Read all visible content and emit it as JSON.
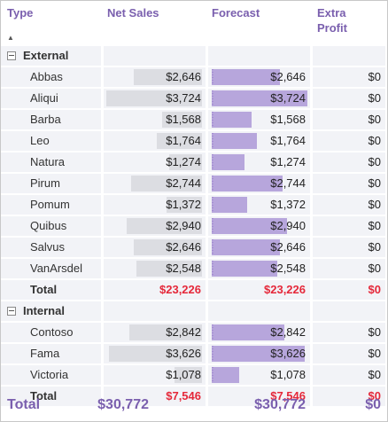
{
  "header": {
    "type": "Type",
    "net_sales": "Net Sales",
    "forecast": "Forecast",
    "extra_profit": "Extra\nProfit",
    "sort_icon": "sort-ascending-icon"
  },
  "groups": [
    {
      "label": "External",
      "rows": [
        {
          "name": "Abbas",
          "net_sales": "$2,646",
          "forecast": "$2,646",
          "extra_profit": "$0",
          "net_sales_value": 2646,
          "forecast_value": 2646
        },
        {
          "name": "Aliqui",
          "net_sales": "$3,724",
          "forecast": "$3,724",
          "extra_profit": "$0",
          "net_sales_value": 3724,
          "forecast_value": 3724
        },
        {
          "name": "Barba",
          "net_sales": "$1,568",
          "forecast": "$1,568",
          "extra_profit": "$0",
          "net_sales_value": 1568,
          "forecast_value": 1568
        },
        {
          "name": "Leo",
          "net_sales": "$1,764",
          "forecast": "$1,764",
          "extra_profit": "$0",
          "net_sales_value": 1764,
          "forecast_value": 1764
        },
        {
          "name": "Natura",
          "net_sales": "$1,274",
          "forecast": "$1,274",
          "extra_profit": "$0",
          "net_sales_value": 1274,
          "forecast_value": 1274
        },
        {
          "name": "Pirum",
          "net_sales": "$2,744",
          "forecast": "$2,744",
          "extra_profit": "$0",
          "net_sales_value": 2744,
          "forecast_value": 2744
        },
        {
          "name": "Pomum",
          "net_sales": "$1,372",
          "forecast": "$1,372",
          "extra_profit": "$0",
          "net_sales_value": 1372,
          "forecast_value": 1372
        },
        {
          "name": "Quibus",
          "net_sales": "$2,940",
          "forecast": "$2,940",
          "extra_profit": "$0",
          "net_sales_value": 2940,
          "forecast_value": 2940
        },
        {
          "name": "Salvus",
          "net_sales": "$2,646",
          "forecast": "$2,646",
          "extra_profit": "$0",
          "net_sales_value": 2646,
          "forecast_value": 2646
        },
        {
          "name": "VanArsdel",
          "net_sales": "$2,548",
          "forecast": "$2,548",
          "extra_profit": "$0",
          "net_sales_value": 2548,
          "forecast_value": 2548
        }
      ],
      "total": {
        "label": "Total",
        "net_sales": "$23,226",
        "forecast": "$23,226",
        "extra_profit": "$0"
      }
    },
    {
      "label": "Internal",
      "rows": [
        {
          "name": "Contoso",
          "net_sales": "$2,842",
          "forecast": "$2,842",
          "extra_profit": "$0",
          "net_sales_value": 2842,
          "forecast_value": 2842
        },
        {
          "name": "Fama",
          "net_sales": "$3,626",
          "forecast": "$3,626",
          "extra_profit": "$0",
          "net_sales_value": 3626,
          "forecast_value": 3626
        },
        {
          "name": "Victoria",
          "net_sales": "$1,078",
          "forecast": "$1,078",
          "extra_profit": "$0",
          "net_sales_value": 1078,
          "forecast_value": 1078
        }
      ],
      "total": {
        "label": "Total",
        "net_sales": "$7,546",
        "forecast": "$7,546",
        "extra_profit": "$0"
      }
    }
  ],
  "grand_total": {
    "label": "Total",
    "net_sales": "$30,772",
    "forecast": "$30,772",
    "extra_profit": "$0"
  },
  "colors": {
    "header_text": "#7a5fae",
    "total_red": "#e5283a",
    "net_sales_bar": "#dcdde2",
    "forecast_bar": "#b7a6dc",
    "cell_bg": "#f2f3f7"
  },
  "bar_scale_max": 3724
}
